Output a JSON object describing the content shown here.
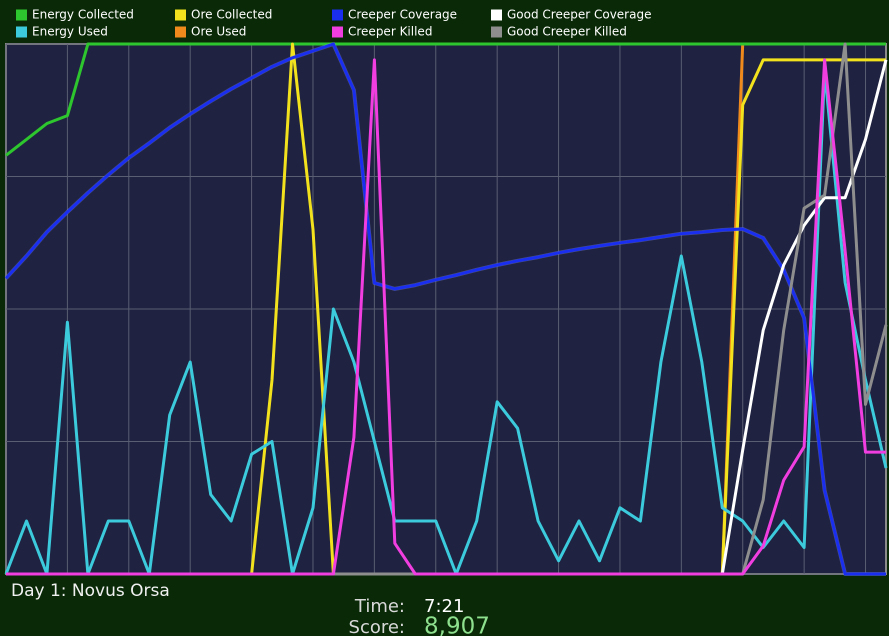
{
  "hud": {
    "day_label": "Day 1: Novus Orsa",
    "time_label": "Time:",
    "time": "7:21",
    "score_label": "Score:",
    "score": "8,907"
  },
  "chart_data": {
    "type": "line",
    "x": [
      0,
      1,
      2,
      3,
      4,
      5,
      6,
      7,
      8,
      9,
      10,
      11,
      12,
      13,
      14,
      15,
      16,
      17,
      18,
      19,
      20,
      21,
      22,
      23,
      24,
      25,
      26,
      27,
      28,
      29,
      30,
      31,
      32,
      33,
      34,
      35,
      36,
      37,
      38,
      39,
      40,
      41,
      42,
      43
    ],
    "xlim": [
      0,
      43
    ],
    "ylim": [
      0,
      100
    ],
    "xticks": [
      0,
      3,
      6,
      9,
      12,
      15,
      18,
      21,
      24,
      27,
      30,
      33,
      36,
      39,
      42
    ],
    "yticks": [
      0,
      25,
      50,
      75,
      100
    ],
    "grid": true,
    "series": [
      {
        "name": "Energy Collected",
        "color": "#2ec62e",
        "values": [
          79,
          82,
          85,
          86.5,
          100,
          100,
          100,
          100,
          100,
          100,
          100,
          100,
          100,
          100,
          100,
          100,
          100,
          100,
          100,
          100,
          100,
          100,
          100,
          100,
          100,
          100,
          100,
          100,
          100,
          100,
          100,
          100,
          100,
          100,
          100,
          100,
          100,
          100,
          100,
          100,
          100,
          100,
          100,
          100
        ]
      },
      {
        "name": "Energy Used",
        "color": "#3ccbdc",
        "values": [
          0,
          10,
          0,
          47.5,
          0,
          10,
          10,
          0,
          30,
          40,
          15,
          10,
          22.6,
          25,
          0,
          12.5,
          50,
          40,
          25,
          10,
          10,
          10,
          0,
          10,
          32.5,
          27.5,
          10,
          2.5,
          10,
          2.5,
          12.5,
          10,
          40,
          60,
          40,
          12.5,
          10,
          5,
          10,
          5,
          95,
          55,
          36.6,
          20
        ]
      },
      {
        "name": "Ore Collected",
        "color": "#f2e21e",
        "values": [
          0,
          0,
          0,
          0,
          0,
          0,
          0,
          0,
          0,
          0,
          0,
          0,
          0,
          36.6,
          100,
          65,
          0,
          0,
          0,
          0,
          0,
          0,
          0,
          0,
          0,
          0,
          0,
          0,
          0,
          0,
          0,
          0,
          0,
          0,
          0,
          0,
          88.5,
          97,
          97,
          97,
          97,
          97,
          97,
          97
        ]
      },
      {
        "name": "Ore Used",
        "color": "#f08a1c",
        "values": [
          0,
          0,
          0,
          0,
          0,
          0,
          0,
          0,
          0,
          0,
          0,
          0,
          0,
          0,
          0,
          0,
          0,
          0,
          0,
          0,
          0,
          0,
          0,
          0,
          0,
          0,
          0,
          0,
          0,
          0,
          0,
          0,
          0,
          0,
          0,
          0,
          100,
          100,
          100,
          100,
          100,
          100,
          100,
          100
        ]
      },
      {
        "name": "Creeper Coverage",
        "color": "#1a2ef0",
        "values": [
          55.8,
          60,
          64.5,
          68.3,
          71.9,
          75.3,
          78.5,
          81.3,
          84.2,
          86.8,
          89.2,
          91.5,
          93.6,
          95.7,
          97.4,
          98.7,
          100,
          91.3,
          54.9,
          53.8,
          54.5,
          55.5,
          56.4,
          57.4,
          58.3,
          59.1,
          59.8,
          60.6,
          61.3,
          61.9,
          62.5,
          63,
          63.6,
          64.2,
          64.5,
          64.9,
          65.1,
          63.4,
          57.4,
          48.3,
          15.8,
          0,
          0,
          0
        ]
      },
      {
        "name": "Creeper Killed",
        "color": "#f03ee0",
        "values": [
          0,
          0,
          0,
          0,
          0,
          0,
          0,
          0,
          0,
          0,
          0,
          0,
          0,
          0,
          0,
          0,
          0,
          25.8,
          97,
          5.8,
          0,
          0,
          0,
          0,
          0,
          0,
          0,
          0,
          0,
          0,
          0,
          0,
          0,
          0,
          0,
          0,
          0,
          5.3,
          17.7,
          24,
          97,
          61,
          23,
          23
        ]
      },
      {
        "name": "Good Creeper Coverage",
        "color": "#ffffff",
        "values": [
          0,
          0,
          0,
          0,
          0,
          0,
          0,
          0,
          0,
          0,
          0,
          0,
          0,
          0,
          0,
          0,
          0,
          0,
          0,
          0,
          0,
          0,
          0,
          0,
          0,
          0,
          0,
          0,
          0,
          0,
          0,
          0,
          0,
          0,
          0,
          0,
          23.4,
          46,
          58.3,
          65.8,
          71,
          71,
          82,
          97
        ]
      },
      {
        "name": "Good Creeper Killed",
        "color": "#8e8e8e",
        "values": [
          0,
          0,
          0,
          0,
          0,
          0,
          0,
          0,
          0,
          0,
          0,
          0,
          0,
          0,
          0,
          0,
          0,
          0,
          0,
          0,
          0,
          0,
          0,
          0,
          0,
          0,
          0,
          0,
          0,
          0,
          0,
          0,
          0,
          0,
          0,
          0,
          0,
          14,
          46,
          69,
          71.5,
          100,
          32,
          47
        ]
      }
    ]
  }
}
